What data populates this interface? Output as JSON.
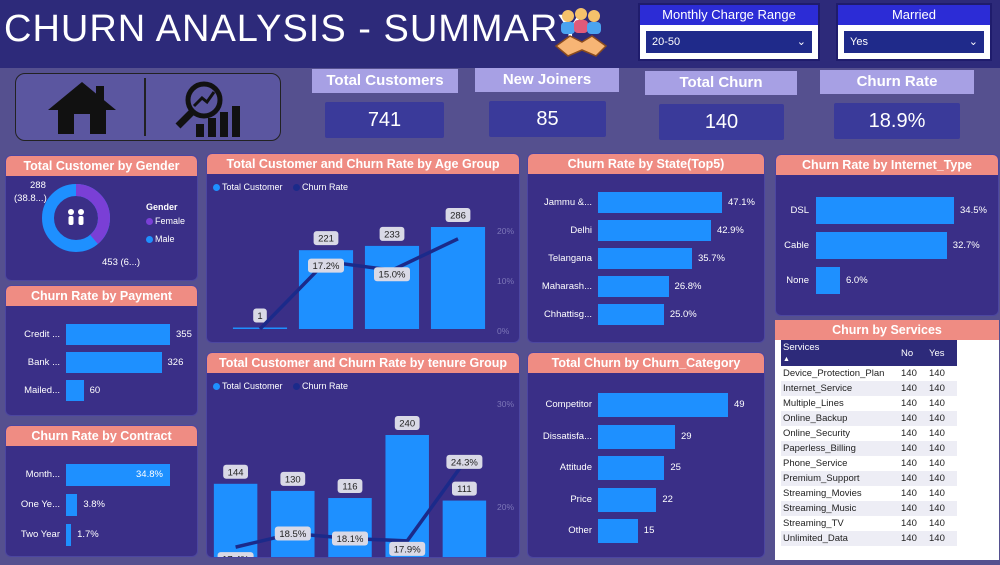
{
  "header": {
    "title": "CHURN ANALYSIS - SUMMARY"
  },
  "slicers": {
    "monthly": {
      "label": "Monthly Charge Range",
      "value": "20-50"
    },
    "married": {
      "label": "Married",
      "value": "Yes"
    }
  },
  "nav": {
    "home_icon": "home-icon",
    "analysis_icon": "analysis-icon"
  },
  "kpis": [
    {
      "label": "Total Customers",
      "value": "741"
    },
    {
      "label": "New Joiners",
      "value": "85"
    },
    {
      "label": "Total Churn",
      "value": "140"
    },
    {
      "label": "Churn Rate",
      "value": "18.9%"
    }
  ],
  "gender": {
    "title": "Total Customer by Gender",
    "legend_title": "Gender",
    "legend": [
      "Female",
      "Male"
    ],
    "label_top": "288",
    "label_top2": "(38.8...)",
    "label_bottom": "453 (6...)",
    "colors": {
      "female": "#7a3fd6",
      "male": "#1e90ff"
    }
  },
  "payment": {
    "title": "Churn Rate by Payment",
    "items": [
      {
        "label": "Credit ...",
        "value": 355,
        "text": "355"
      },
      {
        "label": "Bank ...",
        "value": 326,
        "text": "326"
      },
      {
        "label": "Mailed...",
        "value": 60,
        "text": "60"
      }
    ]
  },
  "contract": {
    "title": "Churn Rate by Contract",
    "items": [
      {
        "label": "Month...",
        "value": 34.8,
        "text": "34.8%"
      },
      {
        "label": "One Ye...",
        "value": 3.8,
        "text": "3.8%"
      },
      {
        "label": "Two Year",
        "value": 1.7,
        "text": "1.7%"
      }
    ]
  },
  "age": {
    "title": "Total Customer and Churn Rate by Age Group",
    "legend": [
      "Total Customer",
      "Churn Rate"
    ],
    "y2_ticks": [
      "20%",
      "10%",
      "0%"
    ],
    "bars": [
      {
        "value": 1,
        "text": "1"
      },
      {
        "value": 221,
        "text": "221"
      },
      {
        "value": 233,
        "text": "233"
      },
      {
        "value": 286,
        "text": "286"
      }
    ],
    "rates": [
      null,
      17.2,
      15.0,
      null
    ],
    "rate_texts": [
      "",
      "17.2%",
      "15.0%",
      ""
    ],
    "line": [
      0.0,
      17.2,
      15.0,
      23.0
    ]
  },
  "tenure": {
    "title": "Total Customer and Churn Rate by tenure Group",
    "legend": [
      "Total Customer",
      "Churn Rate"
    ],
    "y2_ticks": [
      "30%",
      "20%"
    ],
    "bars": [
      {
        "value": 144,
        "text": "144"
      },
      {
        "value": 130,
        "text": "130"
      },
      {
        "value": 116,
        "text": "116"
      },
      {
        "value": 240,
        "text": "240"
      },
      {
        "value": 111,
        "text": "111"
      }
    ],
    "rates": [
      17.4,
      18.5,
      18.1,
      17.9,
      24.3
    ],
    "rate_texts": [
      "17.4%",
      "18.5%",
      "18.1%",
      "17.9%",
      "24.3%"
    ]
  },
  "state": {
    "title": "Churn Rate by State(Top5)",
    "items": [
      {
        "label": "Jammu &...",
        "value": 47.1,
        "text": "47.1%"
      },
      {
        "label": "Delhi",
        "value": 42.9,
        "text": "42.9%"
      },
      {
        "label": "Telangana",
        "value": 35.7,
        "text": "35.7%"
      },
      {
        "label": "Maharash...",
        "value": 26.8,
        "text": "26.8%"
      },
      {
        "label": "Chhattisg...",
        "value": 25.0,
        "text": "25.0%"
      }
    ]
  },
  "category": {
    "title": "Total Churn by Churn_Category",
    "items": [
      {
        "label": "Competitor",
        "value": 49,
        "text": "49"
      },
      {
        "label": "Dissatisfa...",
        "value": 29,
        "text": "29"
      },
      {
        "label": "Attitude",
        "value": 25,
        "text": "25"
      },
      {
        "label": "Price",
        "value": 22,
        "text": "22"
      },
      {
        "label": "Other",
        "value": 15,
        "text": "15"
      }
    ]
  },
  "internet": {
    "title": "Churn Rate by Internet_Type",
    "items": [
      {
        "label": "DSL",
        "value": 34.5,
        "text": "34.5%"
      },
      {
        "label": "Cable",
        "value": 32.7,
        "text": "32.7%"
      },
      {
        "label": "None",
        "value": 6.0,
        "text": "6.0%"
      }
    ]
  },
  "services": {
    "title": "Churn by Services",
    "columns": [
      "Services",
      "No",
      "Yes"
    ],
    "rows": [
      [
        "Device_Protection_Plan",
        "140",
        "140"
      ],
      [
        "Internet_Service",
        "140",
        "140"
      ],
      [
        "Multiple_Lines",
        "140",
        "140"
      ],
      [
        "Online_Backup",
        "140",
        "140"
      ],
      [
        "Online_Security",
        "140",
        "140"
      ],
      [
        "Paperless_Billing",
        "140",
        "140"
      ],
      [
        "Phone_Service",
        "140",
        "140"
      ],
      [
        "Premium_Support",
        "140",
        "140"
      ],
      [
        "Streaming_Movies",
        "140",
        "140"
      ],
      [
        "Streaming_Music",
        "140",
        "140"
      ],
      [
        "Streaming_TV",
        "140",
        "140"
      ],
      [
        "Unlimited_Data",
        "140",
        "140"
      ]
    ]
  },
  "chart_data": [
    {
      "type": "bar",
      "title": "Churn Rate by Payment",
      "categories": [
        "Credit ...",
        "Bank ...",
        "Mailed..."
      ],
      "values": [
        355,
        326,
        60
      ]
    },
    {
      "type": "bar",
      "title": "Churn Rate by Contract",
      "categories": [
        "Month...",
        "One Ye...",
        "Two Year"
      ],
      "values": [
        34.8,
        3.8,
        1.7
      ]
    },
    {
      "type": "bar",
      "title": "Total Customer and Churn Rate by Age Group",
      "series": [
        {
          "name": "Total Customer",
          "values": [
            1,
            221,
            233,
            286
          ]
        },
        {
          "name": "Churn Rate",
          "values": [
            0,
            17.2,
            15.0,
            23
          ]
        }
      ]
    },
    {
      "type": "bar",
      "title": "Total Customer and Churn Rate by tenure Group",
      "series": [
        {
          "name": "Total Customer",
          "values": [
            144,
            130,
            116,
            240,
            111
          ]
        },
        {
          "name": "Churn Rate",
          "values": [
            17.4,
            18.5,
            18.1,
            17.9,
            24.3
          ]
        }
      ]
    },
    {
      "type": "bar",
      "title": "Churn Rate by State(Top5)",
      "categories": [
        "Jammu &...",
        "Delhi",
        "Telangana",
        "Maharash...",
        "Chhattisg..."
      ],
      "values": [
        47.1,
        42.9,
        35.7,
        26.8,
        25.0
      ]
    },
    {
      "type": "bar",
      "title": "Total Churn by Churn_Category",
      "categories": [
        "Competitor",
        "Dissatisfa...",
        "Attitude",
        "Price",
        "Other"
      ],
      "values": [
        49,
        29,
        25,
        22,
        15
      ]
    },
    {
      "type": "bar",
      "title": "Churn Rate by Internet_Type",
      "categories": [
        "DSL",
        "Cable",
        "None"
      ],
      "values": [
        34.5,
        32.7,
        6.0
      ]
    },
    {
      "type": "pie",
      "title": "Total Customer by Gender",
      "categories": [
        "Female",
        "Male"
      ],
      "values": [
        288,
        453
      ]
    }
  ]
}
